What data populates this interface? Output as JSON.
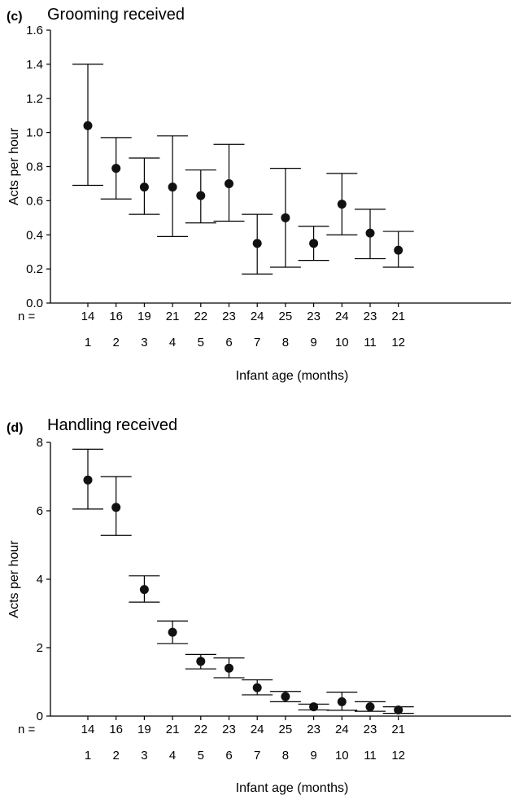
{
  "chart_data": [
    {
      "panel": "(c)",
      "type": "scatter",
      "title": "Grooming received",
      "xlabel": "Infant age (months)",
      "ylabel": "Acts per hour",
      "n_label": "n =",
      "ylim": [
        0,
        1.6
      ],
      "yticks": [
        "0.0",
        "0.2",
        "0.4",
        "0.6",
        "0.8",
        "1.0",
        "1.2",
        "1.4",
        "1.6"
      ],
      "categories": [
        "1",
        "2",
        "3",
        "4",
        "5",
        "6",
        "7",
        "8",
        "9",
        "10",
        "11",
        "12"
      ],
      "n": [
        "14",
        "16",
        "19",
        "21",
        "22",
        "23",
        "24",
        "25",
        "23",
        "24",
        "23",
        "21"
      ],
      "values": [
        1.04,
        0.79,
        0.68,
        0.68,
        0.63,
        0.7,
        0.35,
        0.5,
        0.35,
        0.58,
        0.41,
        0.31
      ],
      "upper": [
        1.4,
        0.97,
        0.85,
        0.98,
        0.78,
        0.93,
        0.52,
        0.79,
        0.45,
        0.76,
        0.55,
        0.42
      ],
      "lower": [
        0.69,
        0.61,
        0.52,
        0.39,
        0.47,
        0.48,
        0.17,
        0.21,
        0.25,
        0.4,
        0.26,
        0.21
      ]
    },
    {
      "panel": "(d)",
      "type": "scatter",
      "title": "Handling received",
      "xlabel": "Infant age (months)",
      "ylabel": "Acts per hour",
      "n_label": "n =",
      "ylim": [
        0,
        8
      ],
      "yticks": [
        "0",
        "2",
        "4",
        "6",
        "8"
      ],
      "categories": [
        "1",
        "2",
        "3",
        "4",
        "5",
        "6",
        "7",
        "8",
        "9",
        "10",
        "11",
        "12"
      ],
      "n": [
        "14",
        "16",
        "19",
        "21",
        "22",
        "23",
        "24",
        "25",
        "23",
        "24",
        "23",
        "21"
      ],
      "values": [
        6.9,
        6.1,
        3.7,
        2.45,
        1.6,
        1.4,
        0.83,
        0.57,
        0.27,
        0.42,
        0.27,
        0.18
      ],
      "upper": [
        7.8,
        7.0,
        4.1,
        2.78,
        1.8,
        1.7,
        1.06,
        0.72,
        0.35,
        0.7,
        0.42,
        0.27
      ],
      "lower": [
        6.05,
        5.28,
        3.33,
        2.12,
        1.38,
        1.12,
        0.62,
        0.42,
        0.18,
        0.17,
        0.14,
        0.08
      ]
    }
  ]
}
